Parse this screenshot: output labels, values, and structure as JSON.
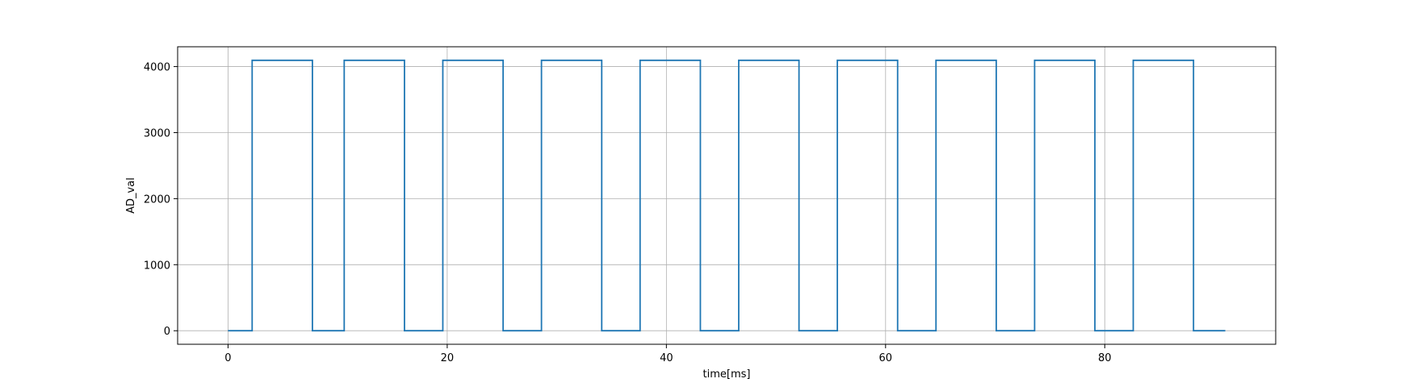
{
  "chart_data": {
    "type": "line",
    "title": "",
    "xlabel": "time[ms]",
    "ylabel": "AD_val",
    "xlim": [
      -4.6,
      95.6
    ],
    "ylim": [
      -205,
      4300
    ],
    "x_ticks": [
      0,
      20,
      40,
      60,
      80
    ],
    "y_ticks": [
      0,
      1000,
      2000,
      3000,
      4000
    ],
    "x_tick_labels": [
      "0",
      "20",
      "40",
      "60",
      "80"
    ],
    "y_tick_labels": [
      "0",
      "1000",
      "2000",
      "3000",
      "4000"
    ],
    "grid": true,
    "legend": "none",
    "line_color": "#1f77b4",
    "series": [
      {
        "step": "post",
        "x": [
          0,
          2.2,
          7.7,
          10.6,
          16.1,
          19.6,
          25.1,
          28.6,
          34.1,
          37.6,
          43.1,
          46.6,
          52.1,
          55.6,
          61.1,
          64.6,
          70.1,
          73.6,
          79.1,
          82.6,
          88.1,
          91.0
        ],
        "y": [
          0,
          4095,
          0,
          4095,
          0,
          4095,
          0,
          4095,
          0,
          4095,
          0,
          4095,
          0,
          4095,
          0,
          4095,
          0,
          4095,
          0,
          4095,
          0,
          0
        ]
      }
    ]
  }
}
